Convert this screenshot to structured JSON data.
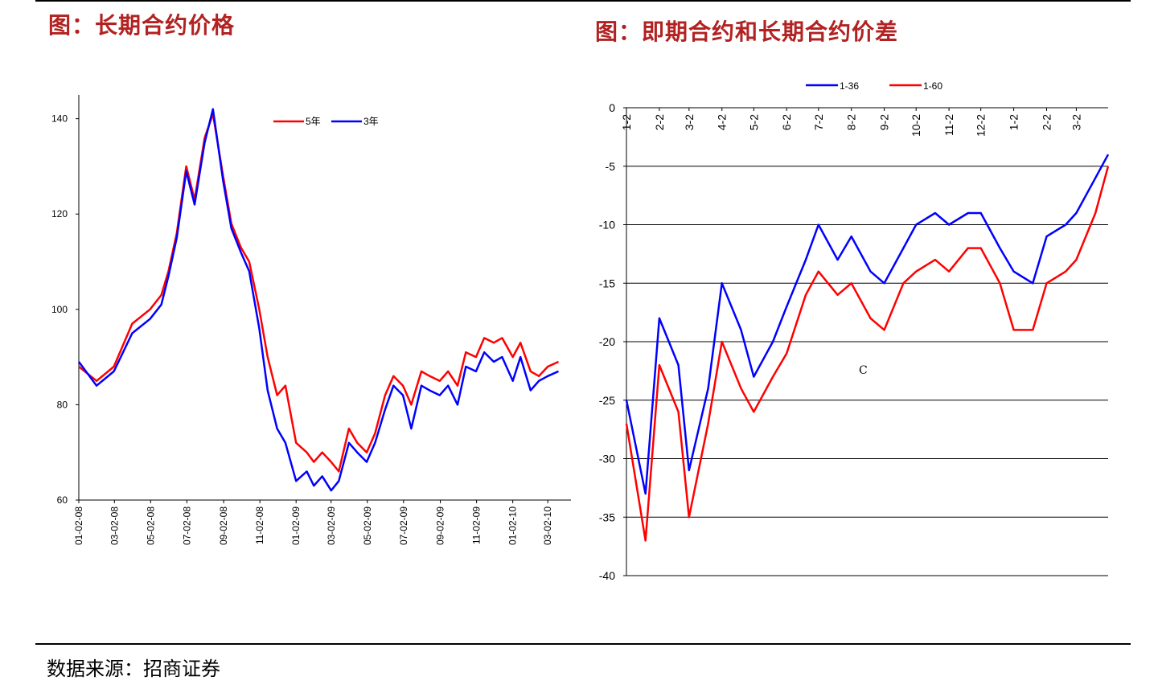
{
  "page": {
    "left_title": "图：长期合约价格",
    "right_title": "图：即期合约和长期合约价差",
    "source": "数据来源：招商证券"
  },
  "chart_data": [
    {
      "type": "line",
      "title": "图：长期合约价格",
      "ylim": [
        60,
        145
      ],
      "yticks": [
        60,
        80,
        100,
        120,
        140
      ],
      "xtick_labels": [
        "01-02-08",
        "03-02-08",
        "05-02-08",
        "07-02-08",
        "09-02-08",
        "11-02-08",
        "01-02-09",
        "03-02-09",
        "05-02-09",
        "07-02-09",
        "09-02-09",
        "11-02-09",
        "01-02-10",
        "03-02-10"
      ],
      "x_dates": [
        "2008-01-02",
        "2008-02-01",
        "2008-03-01",
        "2008-04-01",
        "2008-05-01",
        "2008-05-20",
        "2008-06-01",
        "2008-06-15",
        "2008-07-01",
        "2008-07-15",
        "2008-08-01",
        "2008-08-15",
        "2008-09-01",
        "2008-09-15",
        "2008-10-01",
        "2008-10-15",
        "2008-11-01",
        "2008-11-15",
        "2008-12-01",
        "2008-12-15",
        "2009-01-02",
        "2009-01-20",
        "2009-02-01",
        "2009-02-15",
        "2009-03-02",
        "2009-03-15",
        "2009-04-01",
        "2009-04-15",
        "2009-05-01",
        "2009-05-15",
        "2009-06-01",
        "2009-06-15",
        "2009-07-01",
        "2009-07-15",
        "2009-08-01",
        "2009-08-15",
        "2009-09-01",
        "2009-09-15",
        "2009-10-01",
        "2009-10-15",
        "2009-11-01",
        "2009-11-15",
        "2009-12-01",
        "2009-12-15",
        "2010-01-02",
        "2010-01-15",
        "2010-02-01",
        "2010-02-15",
        "2010-03-02",
        "2010-03-20"
      ],
      "series": [
        {
          "name": "5年",
          "color": "#ff0000",
          "values": [
            88,
            85,
            88,
            97,
            100,
            103,
            108,
            116,
            130,
            123,
            136,
            141,
            128,
            118,
            113,
            110,
            100,
            90,
            82,
            84,
            72,
            70,
            68,
            70,
            68,
            66,
            75,
            72,
            70,
            74,
            82,
            86,
            84,
            80,
            87,
            86,
            85,
            87,
            84,
            91,
            90,
            94,
            93,
            94,
            90,
            93,
            87,
            86,
            88,
            89
          ]
        },
        {
          "name": "3年",
          "color": "#0000ff",
          "values": [
            89,
            84,
            87,
            95,
            98,
            101,
            107,
            115,
            129,
            122,
            135,
            142,
            127,
            117,
            112,
            108,
            96,
            83,
            75,
            72,
            64,
            66,
            63,
            65,
            62,
            64,
            72,
            70,
            68,
            72,
            79,
            84,
            82,
            75,
            84,
            83,
            82,
            84,
            80,
            88,
            87,
            91,
            89,
            90,
            85,
            90,
            83,
            85,
            86,
            87
          ]
        }
      ]
    },
    {
      "type": "line",
      "ylim": [
        -40,
        0
      ],
      "yticks": [
        0,
        -5,
        -10,
        -15,
        -20,
        -25,
        -30,
        -35,
        -40
      ],
      "xtick_labels": [
        "1-2",
        "2-2",
        "3-2",
        "4-2",
        "5-2",
        "6-2",
        "7-2",
        "8-2",
        "9-2",
        "10-2",
        "11-2",
        "12-2",
        "1-2",
        "2-2",
        "3-2"
      ],
      "x_dates": [
        "2009-01-02",
        "2009-01-20",
        "2009-02-02",
        "2009-02-20",
        "2009-03-02",
        "2009-03-20",
        "2009-04-02",
        "2009-04-20",
        "2009-05-02",
        "2009-05-20",
        "2009-06-02",
        "2009-06-20",
        "2009-07-02",
        "2009-07-20",
        "2009-08-02",
        "2009-08-20",
        "2009-09-02",
        "2009-09-20",
        "2009-10-02",
        "2009-10-20",
        "2009-11-02",
        "2009-11-20",
        "2009-12-02",
        "2009-12-20",
        "2010-01-02",
        "2010-01-20",
        "2010-02-02",
        "2010-02-20",
        "2010-03-02",
        "2010-03-20",
        "2010-04-01"
      ],
      "series": [
        {
          "name": "1-36",
          "color": "#0000ff",
          "values": [
            -25,
            -33,
            -18,
            -22,
            -31,
            -24,
            -15,
            -19,
            -23,
            -20,
            -17,
            -13,
            -10,
            -13,
            -11,
            -14,
            -15,
            -12,
            -10,
            -9,
            -10,
            -9,
            -9,
            -12,
            -14,
            -15,
            -11,
            -10,
            -9,
            -6,
            -4
          ]
        },
        {
          "name": "1-60",
          "color": "#ff0000",
          "values": [
            -27,
            -37,
            -22,
            -26,
            -35,
            -27,
            -20,
            -24,
            -26,
            -23,
            -21,
            -16,
            -14,
            -16,
            -15,
            -18,
            -19,
            -15,
            -14,
            -13,
            -14,
            -12,
            -12,
            -15,
            -19,
            -19,
            -15,
            -14,
            -13,
            -9,
            -5
          ]
        }
      ],
      "annotation": "C"
    }
  ]
}
